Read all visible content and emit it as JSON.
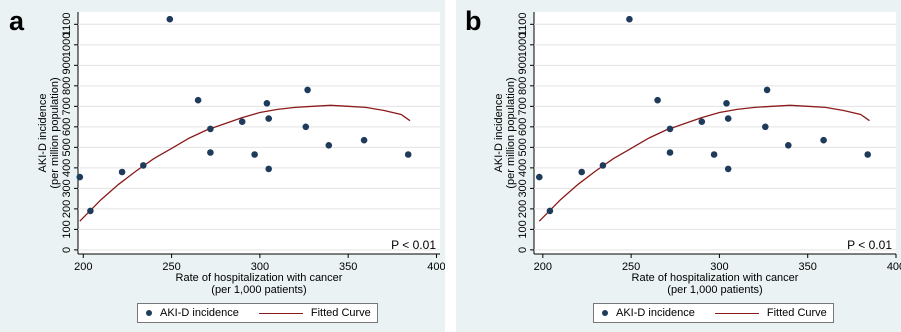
{
  "chart_data": [
    {
      "type": "scatter",
      "panel_label": "a",
      "xlabel": [
        "Rate of hospitalization with cancer",
        "(per 1,000 patients)"
      ],
      "ylabel": [
        "AKI-D incidence",
        "(per million population)"
      ],
      "xlim": [
        197,
        402
      ],
      "ylim": [
        -20,
        1160
      ],
      "xticks": [
        200,
        250,
        300,
        350,
        400
      ],
      "yticks": [
        0,
        100,
        200,
        300,
        400,
        500,
        600,
        700,
        800,
        900,
        1000,
        1100
      ],
      "annotation": "P < 0.01",
      "legend": {
        "placement": "bottom",
        "entries": [
          "AKI-D incidence",
          "Fitted Curve"
        ]
      },
      "series": [
        {
          "name": "AKI-D incidence",
          "kind": "scatter",
          "color": "#1f3b5c",
          "points": [
            [
              198,
              355
            ],
            [
              204,
              190
            ],
            [
              222,
              380
            ],
            [
              234,
              412
            ],
            [
              249,
              1125
            ],
            [
              265,
              730
            ],
            [
              272,
              590
            ],
            [
              272,
              475
            ],
            [
              290,
              625
            ],
            [
              297,
              465
            ],
            [
              304,
              715
            ],
            [
              305,
              640
            ],
            [
              305,
              395
            ],
            [
              327,
              780
            ],
            [
              326,
              600
            ],
            [
              339,
              510
            ],
            [
              359,
              535
            ],
            [
              384,
              465
            ]
          ]
        },
        {
          "name": "Fitted Curve",
          "kind": "line",
          "color": "#8b1a1a",
          "points": [
            [
              198,
              140
            ],
            [
              210,
              245
            ],
            [
              220,
              320
            ],
            [
              230,
              385
            ],
            [
              240,
              445
            ],
            [
              250,
              495
            ],
            [
              260,
              545
            ],
            [
              270,
              585
            ],
            [
              280,
              615
            ],
            [
              290,
              645
            ],
            [
              300,
              670
            ],
            [
              310,
              685
            ],
            [
              320,
              695
            ],
            [
              330,
              700
            ],
            [
              340,
              705
            ],
            [
              350,
              700
            ],
            [
              360,
              695
            ],
            [
              370,
              680
            ],
            [
              380,
              660
            ],
            [
              385,
              630
            ]
          ]
        }
      ]
    },
    {
      "type": "scatter",
      "panel_label": "b",
      "xlabel": [
        "Rate of hospitalization with cancer",
        "(per 1,000 patients)"
      ],
      "ylabel": [
        "AKI-D incidence",
        "(per million population)"
      ],
      "xlim": [
        195,
        400
      ],
      "ylim": [
        -20,
        1160
      ],
      "xticks": [
        200,
        250,
        300,
        350,
        400
      ],
      "yticks": [
        0,
        100,
        200,
        300,
        400,
        500,
        600,
        700,
        800,
        900,
        1000,
        1100
      ],
      "annotation": "P < 0.01",
      "legend": {
        "placement": "bottom",
        "entries": [
          "AKI-D incidence",
          "Fitted Curve"
        ]
      },
      "series": [
        {
          "name": "AKI-D incidence",
          "kind": "scatter",
          "color": "#1f3b5c",
          "points": [
            [
              198,
              355
            ],
            [
              204,
              190
            ],
            [
              222,
              380
            ],
            [
              234,
              412
            ],
            [
              249,
              1125
            ],
            [
              265,
              730
            ],
            [
              272,
              590
            ],
            [
              272,
              475
            ],
            [
              290,
              625
            ],
            [
              297,
              465
            ],
            [
              304,
              715
            ],
            [
              305,
              640
            ],
            [
              305,
              395
            ],
            [
              327,
              780
            ],
            [
              326,
              600
            ],
            [
              339,
              510
            ],
            [
              359,
              535
            ],
            [
              384,
              465
            ]
          ]
        },
        {
          "name": "Fitted Curve",
          "kind": "line",
          "color": "#8b1a1a",
          "points": [
            [
              198,
              140
            ],
            [
              210,
              245
            ],
            [
              220,
              320
            ],
            [
              230,
              385
            ],
            [
              240,
              445
            ],
            [
              250,
              495
            ],
            [
              260,
              545
            ],
            [
              270,
              585
            ],
            [
              280,
              615
            ],
            [
              290,
              645
            ],
            [
              300,
              670
            ],
            [
              310,
              685
            ],
            [
              320,
              695
            ],
            [
              330,
              700
            ],
            [
              340,
              705
            ],
            [
              350,
              700
            ],
            [
              360,
              695
            ],
            [
              370,
              680
            ],
            [
              380,
              660
            ],
            [
              385,
              630
            ]
          ]
        }
      ]
    }
  ]
}
